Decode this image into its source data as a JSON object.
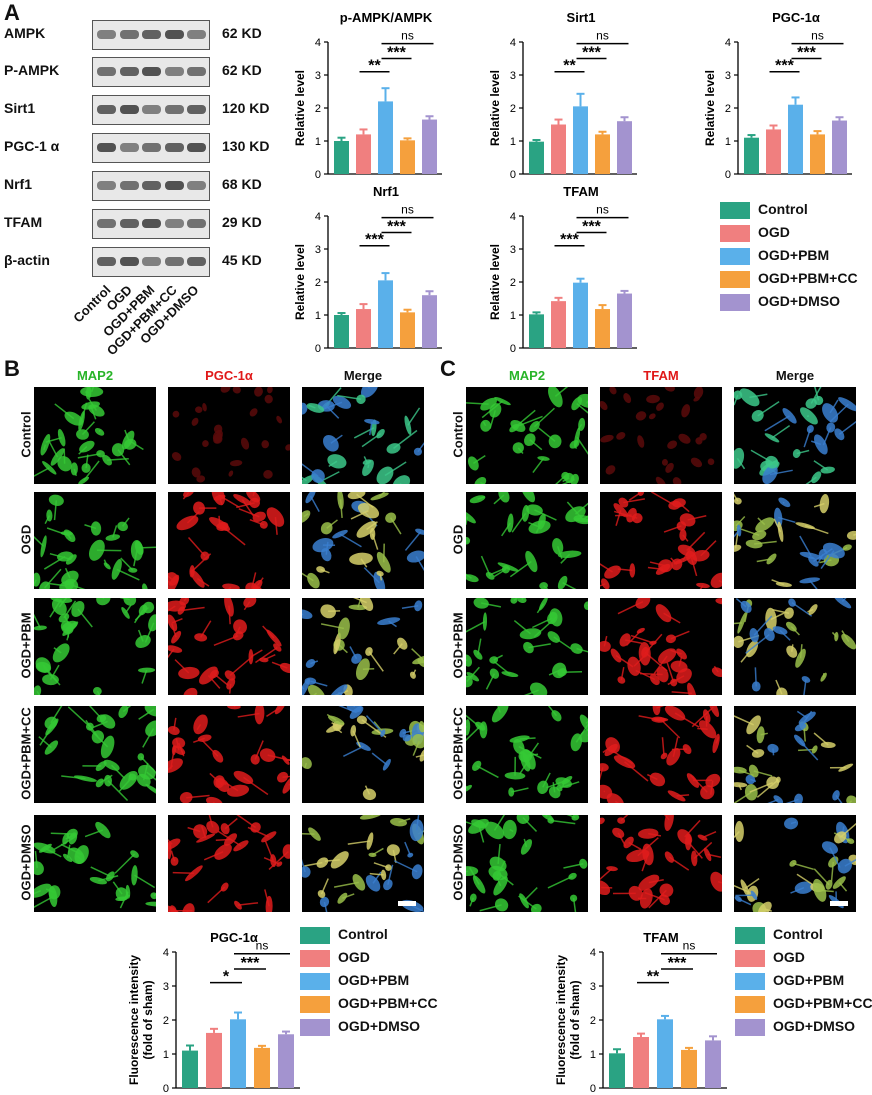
{
  "panels": {
    "a": "A",
    "b": "B",
    "c": "C"
  },
  "groups": [
    "Control",
    "OGD",
    "OGD+PBM",
    "OGD+PBM+CC",
    "OGD+DMSO"
  ],
  "colors": [
    "#2aa383",
    "#f07f7f",
    "#5ab0ea",
    "#f5a03d",
    "#a393cf"
  ],
  "western": {
    "proteins": [
      {
        "name": "AMPK",
        "kd": "62 KD"
      },
      {
        "name": "P-AMPK",
        "kd": "62 KD"
      },
      {
        "name": "Sirt1",
        "kd": "120 KD"
      },
      {
        "name": "PGC-1 α",
        "kd": "130 KD"
      },
      {
        "name": "Nrf1",
        "kd": "68 KD"
      },
      {
        "name": "TFAM",
        "kd": "29 KD"
      },
      {
        "name": "β-actin",
        "kd": "45 KD"
      }
    ],
    "lanes": [
      "Control",
      "OGD",
      "OGD+PBM",
      "OGD+PBM+CC",
      "OGD+DMSO"
    ]
  },
  "legend": [
    "Control",
    "OGD",
    "OGD+PBM",
    "OGD+PBM+CC",
    "OGD+DMSO"
  ],
  "micro_b": {
    "cols": [
      "MAP2",
      "PGC-1α",
      "Merge"
    ],
    "rows": [
      "Control",
      "OGD",
      "OGD+PBM",
      "OGD+PBM+CC",
      "OGD+DMSO"
    ]
  },
  "micro_c": {
    "cols": [
      "MAP2",
      "TFAM",
      "Merge"
    ],
    "rows": [
      "Control",
      "OGD",
      "OGD+PBM",
      "OGD+PBM+CC",
      "OGD+DMSO"
    ]
  },
  "chart_data": [
    {
      "type": "bar",
      "title": "p-AMPK/AMPK",
      "ylabel": "Relative level",
      "ylim": [
        0,
        4
      ],
      "yticks": [
        0,
        1,
        2,
        3,
        4
      ],
      "categories": [
        "Control",
        "OGD",
        "OGD+PBM",
        "OGD+PBM+CC",
        "OGD+DMSO"
      ],
      "values": [
        1.0,
        1.2,
        2.2,
        1.02,
        1.65
      ],
      "errors": [
        0.1,
        0.15,
        0.4,
        0.06,
        0.1
      ],
      "annotations": [
        {
          "from": 2,
          "to": 1,
          "label": "**"
        },
        {
          "from": 2,
          "to": 3,
          "label": "***"
        },
        {
          "from": 2,
          "to": 4,
          "label": "ns"
        }
      ]
    },
    {
      "type": "bar",
      "title": "Sirt1",
      "ylabel": "Relative level",
      "ylim": [
        0,
        4
      ],
      "yticks": [
        0,
        1,
        2,
        3,
        4
      ],
      "categories": [
        "Control",
        "OGD",
        "OGD+PBM",
        "OGD+PBM+CC",
        "OGD+DMSO"
      ],
      "values": [
        0.98,
        1.5,
        2.05,
        1.2,
        1.6
      ],
      "errors": [
        0.05,
        0.15,
        0.38,
        0.08,
        0.12
      ],
      "annotations": [
        {
          "from": 2,
          "to": 1,
          "label": "**"
        },
        {
          "from": 2,
          "to": 3,
          "label": "***"
        },
        {
          "from": 2,
          "to": 4,
          "label": "ns"
        }
      ]
    },
    {
      "type": "bar",
      "title": "PGC-1α",
      "ylabel": "Relative level",
      "ylim": [
        0,
        4
      ],
      "yticks": [
        0,
        1,
        2,
        3,
        4
      ],
      "categories": [
        "Control",
        "OGD",
        "OGD+PBM",
        "OGD+PBM+CC",
        "OGD+DMSO"
      ],
      "values": [
        1.1,
        1.35,
        2.1,
        1.2,
        1.62
      ],
      "errors": [
        0.08,
        0.12,
        0.22,
        0.1,
        0.1
      ],
      "annotations": [
        {
          "from": 2,
          "to": 1,
          "label": "***"
        },
        {
          "from": 2,
          "to": 3,
          "label": "***"
        },
        {
          "from": 2,
          "to": 4,
          "label": "ns"
        }
      ]
    },
    {
      "type": "bar",
      "title": "Nrf1",
      "ylabel": "Relative level",
      "ylim": [
        0,
        4
      ],
      "yticks": [
        0,
        1,
        2,
        3,
        4
      ],
      "categories": [
        "Control",
        "OGD",
        "OGD+PBM",
        "OGD+PBM+CC",
        "OGD+DMSO"
      ],
      "values": [
        1.0,
        1.18,
        2.05,
        1.08,
        1.6
      ],
      "errors": [
        0.06,
        0.15,
        0.22,
        0.08,
        0.12
      ],
      "annotations": [
        {
          "from": 2,
          "to": 1,
          "label": "***"
        },
        {
          "from": 2,
          "to": 3,
          "label": "***"
        },
        {
          "from": 2,
          "to": 4,
          "label": "ns"
        }
      ]
    },
    {
      "type": "bar",
      "title": "TFAM",
      "ylabel": "Relative level",
      "ylim": [
        0,
        4
      ],
      "yticks": [
        0,
        1,
        2,
        3,
        4
      ],
      "categories": [
        "Control",
        "OGD",
        "OGD+PBM",
        "OGD+PBM+CC",
        "OGD+DMSO"
      ],
      "values": [
        1.02,
        1.42,
        1.98,
        1.18,
        1.65
      ],
      "errors": [
        0.06,
        0.1,
        0.12,
        0.12,
        0.08
      ],
      "annotations": [
        {
          "from": 2,
          "to": 1,
          "label": "***"
        },
        {
          "from": 2,
          "to": 3,
          "label": "***"
        },
        {
          "from": 2,
          "to": 4,
          "label": "ns"
        }
      ]
    },
    {
      "type": "bar",
      "title": "PGC-1α",
      "ylabel": "Fluorescence intensity (fold of sham)",
      "ylim": [
        0,
        4
      ],
      "yticks": [
        0,
        1,
        2,
        3,
        4
      ],
      "categories": [
        "Control",
        "OGD",
        "OGD+PBM",
        "OGD+PBM+CC",
        "OGD+DMSO"
      ],
      "values": [
        1.1,
        1.62,
        2.02,
        1.18,
        1.58
      ],
      "errors": [
        0.15,
        0.12,
        0.2,
        0.06,
        0.08
      ],
      "annotations": [
        {
          "from": 2,
          "to": 1,
          "label": "*"
        },
        {
          "from": 2,
          "to": 3,
          "label": "***"
        },
        {
          "from": 2,
          "to": 4,
          "label": "ns"
        }
      ]
    },
    {
      "type": "bar",
      "title": "TFAM",
      "ylabel": "Fluorescence intensity (fold of sham)",
      "ylim": [
        0,
        4
      ],
      "yticks": [
        0,
        1,
        2,
        3,
        4
      ],
      "categories": [
        "Control",
        "OGD",
        "OGD+PBM",
        "OGD+PBM+CC",
        "OGD+DMSO"
      ],
      "values": [
        1.02,
        1.5,
        2.02,
        1.12,
        1.4
      ],
      "errors": [
        0.12,
        0.1,
        0.1,
        0.06,
        0.12
      ],
      "annotations": [
        {
          "from": 2,
          "to": 1,
          "label": "**"
        },
        {
          "from": 2,
          "to": 3,
          "label": "***"
        },
        {
          "from": 2,
          "to": 4,
          "label": "ns"
        }
      ]
    }
  ]
}
